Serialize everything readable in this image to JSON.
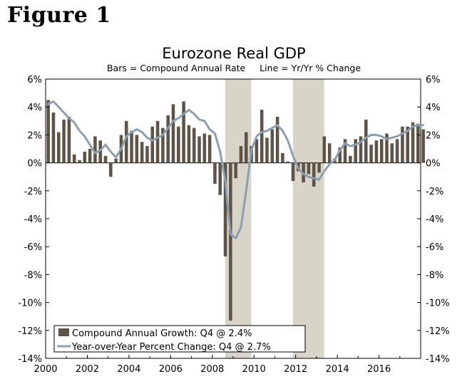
{
  "figure_label": "Figure 1",
  "colors": {
    "bar": "#5f5247",
    "line": "#8aa0b2",
    "recession": "#d8d4c8",
    "axis": "#000000",
    "background": "#ffffff"
  },
  "chart_data": {
    "type": "bar+line",
    "title": "Eurozone Real GDP",
    "subtitle": "Bars = Compound Annual Rate     Line = Yr/Yr % Change",
    "xlim": [
      2000.0,
      2018.0
    ],
    "ylim": [
      -14,
      6
    ],
    "y_ticks": [
      6,
      4,
      2,
      0,
      -2,
      -4,
      -6,
      -8,
      -10,
      -12,
      -14
    ],
    "y_tick_labels": [
      "6%",
      "4%",
      "2%",
      "0%",
      "-2%",
      "-4%",
      "-6%",
      "-8%",
      "-10%",
      "-12%",
      "-14%"
    ],
    "x_ticks": [
      2000,
      2002,
      2004,
      2006,
      2008,
      2010,
      2012,
      2014,
      2016
    ],
    "x_tick_labels": [
      "2000",
      "2002",
      "2004",
      "2006",
      "2008",
      "2010",
      "2012",
      "2014",
      "2016"
    ],
    "recessions": [
      [
        2008.62,
        2009.87
      ],
      [
        2011.87,
        2013.37
      ]
    ],
    "legend": {
      "placement": "bottom-left",
      "entries": [
        {
          "type": "bar",
          "label": "Compound Annual Growth: Q4 @ 2.4%"
        },
        {
          "type": "line",
          "label": "Year-over-Year Percent Change: Q4 @ 2.7%"
        }
      ]
    },
    "series": [
      {
        "name": "Compound Annual Growth",
        "type": "bar",
        "start": 2000.0,
        "step": 0.25,
        "values": [
          4.5,
          3.6,
          2.2,
          3.1,
          3.3,
          0.6,
          0.2,
          0.8,
          1.0,
          1.9,
          1.6,
          0.5,
          -1.0,
          0.3,
          2.0,
          3.0,
          2.3,
          2.0,
          1.5,
          1.2,
          2.6,
          3.0,
          2.5,
          3.4,
          4.2,
          2.6,
          4.4,
          2.7,
          2.5,
          1.9,
          2.1,
          2.0,
          -1.5,
          -2.3,
          -6.7,
          -11.3,
          -1.1,
          1.2,
          2.2,
          1.2,
          1.7,
          3.8,
          1.8,
          2.4,
          3.3,
          0.7,
          0.1,
          -1.3,
          -0.6,
          -1.4,
          -0.8,
          -1.7,
          -0.7,
          1.9,
          1.4,
          0.3,
          1.1,
          1.7,
          0.5,
          1.7,
          1.9,
          3.1,
          1.3,
          1.6,
          1.7,
          2.1,
          1.4,
          1.7,
          2.6,
          2.6,
          2.9,
          2.8,
          2.4
        ]
      },
      {
        "name": "Year-over-Year Percent Change",
        "type": "line",
        "start": 2000.0,
        "step": 0.25,
        "values": [
          4.2,
          4.4,
          4.0,
          3.6,
          3.2,
          2.9,
          2.3,
          1.9,
          1.3,
          0.7,
          0.9,
          1.3,
          0.8,
          0.4,
          1.0,
          1.9,
          2.2,
          2.4,
          2.2,
          1.8,
          1.6,
          1.8,
          2.0,
          2.5,
          3.0,
          3.2,
          3.5,
          3.8,
          3.5,
          3.1,
          3.0,
          2.4,
          2.1,
          0.8,
          -1.3,
          -5.1,
          -5.4,
          -4.6,
          -2.0,
          0.9,
          1.9,
          2.2,
          2.3,
          2.5,
          2.7,
          2.3,
          1.6,
          0.5,
          -0.4,
          -0.8,
          -1.0,
          -1.1,
          -1.2,
          -0.6,
          -0.1,
          0.2,
          0.9,
          1.4,
          1.2,
          1.3,
          1.5,
          1.8,
          2.0,
          2.0,
          1.9,
          1.7,
          1.8,
          1.9,
          2.1,
          2.3,
          2.6,
          2.7,
          2.7
        ]
      }
    ]
  }
}
